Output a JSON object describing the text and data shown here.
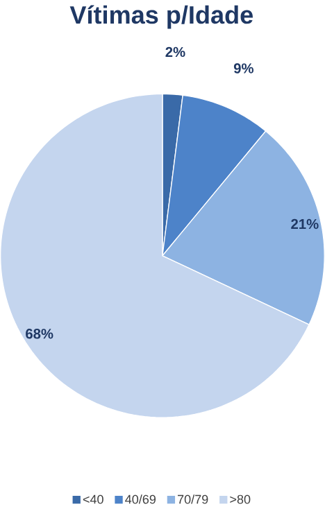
{
  "chart_data": {
    "type": "pie",
    "title": "Vítimas  p/Idade",
    "categories": [
      "<40",
      "40/69",
      "70/79",
      ">80"
    ],
    "values": [
      2,
      9,
      21,
      68
    ],
    "colors": [
      "#3a6aa8",
      "#4d83c9",
      "#8db3e2",
      "#c4d5ee"
    ],
    "value_labels": [
      "2%",
      "9%",
      "21%",
      "68%"
    ],
    "legend": "bottom"
  }
}
